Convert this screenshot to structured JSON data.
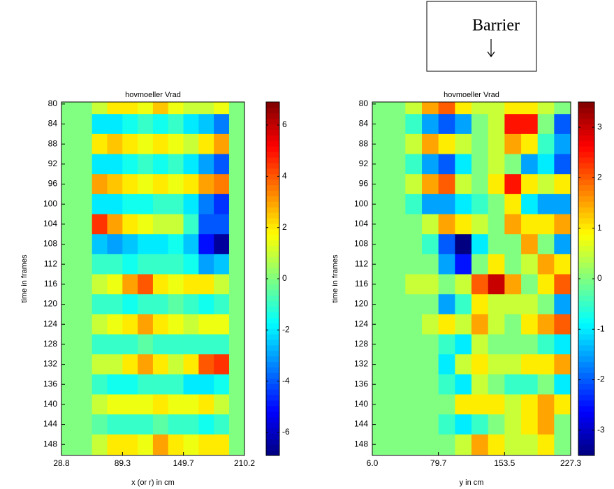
{
  "chart_data": [
    {
      "type": "heatmap",
      "title": "hovmoeller Vrad",
      "xlabel": "x (or r) in cm",
      "ylabel": "time in frames",
      "colormap": "jet",
      "xlim": [
        28.8,
        210.2
      ],
      "xticks": [
        28.8,
        89.3,
        149.7,
        210.2
      ],
      "ylim": [
        79.6,
        150.2
      ],
      "yticks": [
        80,
        84,
        88,
        92,
        96,
        100,
        104,
        108,
        112,
        116,
        120,
        124,
        128,
        132,
        136,
        140,
        144,
        148
      ],
      "clim": [
        -6.9,
        6.9
      ],
      "cticks": [
        -6,
        -4,
        -2,
        0,
        2,
        4,
        6
      ],
      "x": [
        36.4,
        51.5,
        66.6,
        81.7,
        96.8,
        111.9,
        127.0,
        142.1,
        157.2,
        172.3,
        187.4,
        202.5
      ],
      "y": [
        80,
        84,
        88,
        92,
        96,
        100,
        104,
        108,
        112,
        116,
        120,
        124,
        128,
        132,
        136,
        140,
        144,
        148
      ],
      "z": [
        [
          0,
          0,
          1,
          2,
          2,
          1.5,
          2.5,
          1.5,
          1,
          1,
          1.5,
          0
        ],
        [
          0,
          0,
          -2,
          -2,
          -1.5,
          -1,
          -1.5,
          -1,
          -2,
          -2.5,
          -3.5,
          0
        ],
        [
          0,
          0,
          2,
          2.5,
          2,
          1.5,
          2,
          1.5,
          1,
          2,
          3,
          0
        ],
        [
          0,
          0,
          -2,
          -2,
          -1.5,
          -1,
          -1.5,
          -1,
          -2,
          -3,
          -4,
          0
        ],
        [
          0,
          0,
          3,
          2.5,
          2,
          1.5,
          2,
          1.5,
          2,
          3,
          3.5,
          0
        ],
        [
          0,
          0,
          -2,
          -2,
          -1.5,
          -1.5,
          -1,
          -1,
          -2,
          -3.5,
          -4.5,
          0
        ],
        [
          0,
          0,
          4.5,
          3,
          2,
          1.5,
          1,
          1,
          -1,
          -4,
          -4,
          0
        ],
        [
          0,
          0,
          -2.5,
          -3,
          -2.5,
          -2,
          -2,
          -1.5,
          -2.5,
          -5,
          -6.5,
          0
        ],
        [
          0,
          0,
          -1,
          -1,
          -1.5,
          -1,
          -1,
          -1,
          -1.5,
          -3,
          -2.5,
          0
        ],
        [
          0,
          0,
          1,
          1.5,
          3,
          4,
          2,
          1.5,
          2,
          2,
          1,
          0
        ],
        [
          0,
          0,
          -1,
          -1,
          -1.5,
          -1,
          -1,
          -0.5,
          -1,
          -1.5,
          -1,
          0
        ],
        [
          0,
          0,
          1,
          1.5,
          2,
          3,
          2,
          1.5,
          1,
          1.5,
          1.5,
          0
        ],
        [
          0,
          0,
          -1,
          -1,
          -1,
          -0.5,
          -1,
          -1,
          -1,
          -1,
          -1,
          0
        ],
        [
          0,
          0,
          1,
          1,
          2,
          3,
          2,
          1,
          2,
          4,
          4.5,
          0
        ],
        [
          0,
          0,
          -1,
          -1.5,
          -1.5,
          -1,
          -1,
          -1,
          -2,
          -2,
          -1.5,
          0
        ],
        [
          0,
          0,
          1,
          1.5,
          1.5,
          1.5,
          2,
          1.5,
          1.5,
          2,
          1,
          0
        ],
        [
          0,
          0,
          -0.5,
          -1,
          -1,
          -1,
          -0.5,
          -1,
          -1,
          -1.5,
          -1,
          0
        ],
        [
          0,
          0,
          1,
          2,
          2,
          1.5,
          3,
          2,
          1.5,
          2,
          2,
          0
        ]
      ]
    },
    {
      "type": "heatmap",
      "title": "hovmoeller Vrad",
      "xlabel": "y in cm",
      "ylabel": "time in frames",
      "annotation": "Barrier",
      "colormap": "jet",
      "xlim": [
        6.0,
        227.3
      ],
      "xticks": [
        {
          "value": 6.0,
          "label": "6.0"
        },
        79.7,
        153.5,
        227.3
      ],
      "ylim": [
        79.6,
        150.2
      ],
      "yticks": [
        80,
        84,
        88,
        92,
        96,
        100,
        104,
        108,
        112,
        116,
        120,
        124,
        128,
        132,
        136,
        140,
        144,
        148
      ],
      "clim": [
        -3.5,
        3.5
      ],
      "cticks": [
        -3,
        -2,
        -1,
        0,
        1,
        2,
        3
      ],
      "x": [
        15.2,
        33.7,
        52.1,
        70.6,
        89.0,
        107.5,
        125.9,
        144.4,
        162.8,
        181.3,
        199.7,
        218.1
      ],
      "y": [
        80,
        84,
        88,
        92,
        96,
        100,
        104,
        108,
        112,
        116,
        120,
        124,
        128,
        132,
        136,
        140,
        144,
        148
      ],
      "z": [
        [
          0,
          0,
          0.5,
          1.5,
          2,
          1,
          0.5,
          0.5,
          1,
          1,
          0.5,
          0
        ],
        [
          0,
          0,
          -0.5,
          -1.5,
          -2,
          -1.5,
          0,
          0.5,
          2.5,
          2.5,
          0,
          -2
        ],
        [
          0,
          0,
          0.5,
          1.5,
          1,
          0.5,
          0,
          0.5,
          1.5,
          1,
          -0.5,
          -1.5
        ],
        [
          0,
          0,
          -0.5,
          -1.5,
          -2,
          -1,
          0,
          0.5,
          0,
          -1.5,
          -1,
          -2
        ],
        [
          0,
          0,
          0.5,
          1.5,
          2,
          0.5,
          0,
          1,
          2.5,
          1,
          0.5,
          1
        ],
        [
          0,
          0,
          -0.5,
          -1.5,
          -1.5,
          -1,
          -0.5,
          0,
          1,
          -1,
          -1.5,
          -1.5
        ],
        [
          0,
          0,
          0,
          0.5,
          1.5,
          1,
          0.5,
          0,
          1.5,
          1,
          1,
          1.5
        ],
        [
          0,
          0,
          0,
          -0.5,
          -2,
          -3.5,
          -1,
          0,
          0,
          1.5,
          0,
          -1.5
        ],
        [
          0,
          0,
          0,
          0,
          -1.5,
          -2.5,
          0,
          1,
          0,
          0.5,
          1.5,
          1
        ],
        [
          0,
          0,
          0.5,
          0.5,
          0,
          0.5,
          2,
          3,
          1.5,
          0,
          1,
          2
        ],
        [
          0,
          0,
          0,
          0,
          -1.5,
          -0.5,
          1,
          0.5,
          0.5,
          0.5,
          0,
          -1.5
        ],
        [
          0,
          0,
          0,
          0.5,
          1,
          0.5,
          1.5,
          0.5,
          0,
          1,
          1.5,
          2
        ],
        [
          0,
          0,
          0,
          0,
          -0.5,
          -1,
          0.5,
          0,
          0,
          0,
          -0.5,
          -1
        ],
        [
          0,
          0,
          0,
          0,
          -1,
          0.5,
          1,
          0.5,
          0.5,
          1,
          1,
          1.5
        ],
        [
          0,
          0,
          0,
          0,
          -0.5,
          -1,
          0.5,
          0,
          -0.5,
          -0.5,
          0,
          -1
        ],
        [
          0,
          0,
          0,
          0,
          0,
          1,
          1,
          1,
          0.5,
          1,
          1.5,
          1
        ],
        [
          0,
          0,
          0,
          0,
          -0.5,
          -1,
          -0.5,
          0,
          0.5,
          1,
          1.5,
          0
        ],
        [
          0,
          0,
          0,
          0,
          0,
          0.5,
          1.5,
          1,
          0.5,
          0.5,
          1,
          0
        ]
      ]
    }
  ]
}
